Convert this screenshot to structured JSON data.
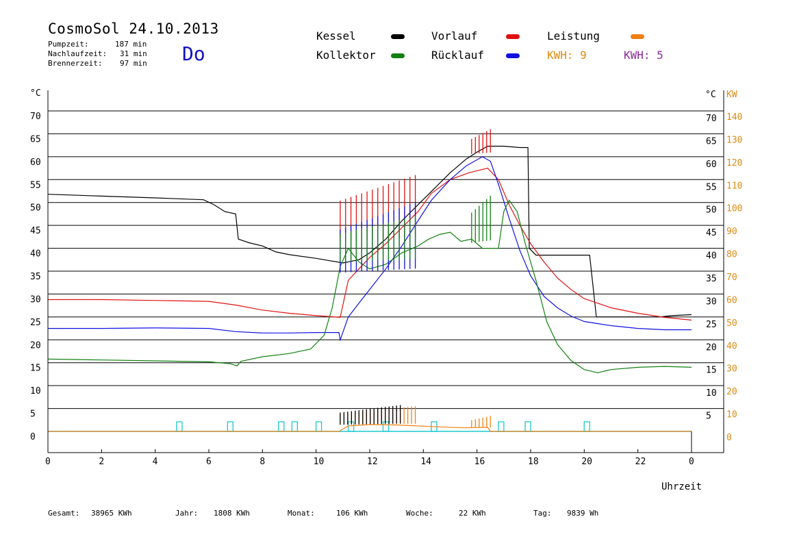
{
  "header": {
    "title": "CosmoSol 24.10.2013",
    "day": "Do",
    "stats": [
      {
        "label": "Pumpzeit:",
        "value": "187 min"
      },
      {
        "label": "Nachlaufzeit:",
        "value": "31 min"
      },
      {
        "label": "Brennerzeit:",
        "value": "97 min"
      }
    ]
  },
  "legend": {
    "kessel": {
      "label": "Kessel",
      "color": "#000000"
    },
    "vorlauf": {
      "label": "Vorlauf",
      "color": "#e01010"
    },
    "leistung": {
      "label": "Leistung",
      "color": "#f08010"
    },
    "kollektor": {
      "label": "Kollektor",
      "color": "#108010"
    },
    "ruecklauf": {
      "label": "Rücklauf",
      "color": "#1010e0"
    },
    "kwh1": {
      "label": "KWH: 9",
      "color": "#e08a10"
    },
    "kwh2": {
      "label": "KWH: 5",
      "color": "#8a2a9a"
    }
  },
  "footer": [
    {
      "label": "Gesamt:",
      "value": "38965 KWh"
    },
    {
      "label": "Jahr:",
      "value": "1808 KWh"
    },
    {
      "label": "Monat:",
      "value": "106 KWh"
    },
    {
      "label": "Woche:",
      "value": "22 KWh"
    },
    {
      "label": "Tag:",
      "value": "9839 Wh"
    }
  ],
  "chart_data": {
    "type": "line",
    "xlabel": "Uhrzeit",
    "ylabel_left": "°C",
    "ylabel_right_1": "°C",
    "ylabel_right_2": "KW",
    "x_ticks": [
      "0",
      "2",
      "4",
      "6",
      "8",
      "10",
      "12",
      "14",
      "16",
      "18",
      "20",
      "22",
      "0"
    ],
    "xlim": [
      0,
      24
    ],
    "ylim": [
      0,
      70
    ],
    "y_ticks": [
      0,
      5,
      10,
      15,
      20,
      25,
      30,
      35,
      40,
      45,
      50,
      55,
      60,
      65,
      70
    ],
    "y2_ticks": [
      0,
      10,
      20,
      30,
      40,
      50,
      60,
      70,
      80,
      90,
      100,
      110,
      120,
      130,
      140
    ],
    "grid": true,
    "series": [
      {
        "name": "Kessel",
        "color": "#000000",
        "points": [
          [
            0,
            51.8
          ],
          [
            2,
            51.4
          ],
          [
            4,
            51
          ],
          [
            5.8,
            50.6
          ],
          [
            6.2,
            49.5
          ],
          [
            6.6,
            48
          ],
          [
            7,
            47.5
          ],
          [
            7.1,
            42
          ],
          [
            7.5,
            41.2
          ],
          [
            8,
            40.5
          ],
          [
            8.5,
            39.2
          ],
          [
            9,
            38.6
          ],
          [
            10,
            37.8
          ],
          [
            11,
            36.8
          ],
          [
            11.6,
            37.5
          ],
          [
            12,
            39
          ],
          [
            12.6,
            42
          ],
          [
            13.2,
            46
          ],
          [
            13.8,
            49.5
          ],
          [
            14.4,
            53
          ],
          [
            15,
            56.5
          ],
          [
            15.6,
            59.5
          ],
          [
            16,
            61
          ],
          [
            16.4,
            62.3
          ],
          [
            17,
            62.3
          ],
          [
            17.6,
            62
          ],
          [
            17.9,
            62
          ],
          [
            17.95,
            40
          ],
          [
            18.2,
            38.5
          ],
          [
            20.2,
            38.5
          ],
          [
            20.45,
            25
          ],
          [
            22,
            25
          ],
          [
            22.8,
            25
          ],
          [
            23.3,
            25.3
          ],
          [
            24,
            25.5
          ]
        ]
      },
      {
        "name": "Vorlauf",
        "color": "#e01010",
        "points": [
          [
            0,
            28.8
          ],
          [
            2,
            28.8
          ],
          [
            4,
            28.6
          ],
          [
            6,
            28.4
          ],
          [
            7,
            27.6
          ],
          [
            8,
            26.5
          ],
          [
            9,
            25.8
          ],
          [
            10,
            25.3
          ],
          [
            10.9,
            24.9
          ],
          [
            11.2,
            33
          ],
          [
            11.6,
            35.5
          ],
          [
            12,
            38
          ],
          [
            12.6,
            41
          ],
          [
            13.2,
            44.5
          ],
          [
            13.8,
            48
          ],
          [
            14.3,
            52
          ],
          [
            15,
            55
          ],
          [
            15.7,
            56.5
          ],
          [
            16.4,
            57.5
          ],
          [
            16.8,
            55
          ],
          [
            17.2,
            49.5
          ],
          [
            17.6,
            45
          ],
          [
            18,
            41
          ],
          [
            18.5,
            37
          ],
          [
            19,
            33.5
          ],
          [
            19.5,
            31
          ],
          [
            20,
            29
          ],
          [
            21,
            27
          ],
          [
            22,
            25.8
          ],
          [
            23,
            24.9
          ],
          [
            24,
            24.3
          ]
        ]
      },
      {
        "name": "Rücklauf",
        "color": "#1010e0",
        "points": [
          [
            0,
            22.5
          ],
          [
            2,
            22.5
          ],
          [
            4,
            22.6
          ],
          [
            6,
            22.5
          ],
          [
            7,
            21.8
          ],
          [
            8,
            21.5
          ],
          [
            9,
            21.5
          ],
          [
            10,
            21.6
          ],
          [
            10.85,
            21.6
          ],
          [
            10.9,
            20
          ],
          [
            11.2,
            25
          ],
          [
            11.6,
            28
          ],
          [
            12,
            31
          ],
          [
            12.6,
            35.5
          ],
          [
            13.2,
            40.5
          ],
          [
            13.8,
            46
          ],
          [
            14.3,
            50.5
          ],
          [
            15,
            55
          ],
          [
            15.6,
            58
          ],
          [
            16.2,
            60
          ],
          [
            16.5,
            59
          ],
          [
            16.8,
            54
          ],
          [
            17.2,
            46.5
          ],
          [
            17.6,
            39.5
          ],
          [
            18,
            34
          ],
          [
            18.5,
            29.5
          ],
          [
            19,
            27
          ],
          [
            19.5,
            25.2
          ],
          [
            20,
            24
          ],
          [
            21,
            23.1
          ],
          [
            22,
            22.5
          ],
          [
            23,
            22.2
          ],
          [
            24,
            22.2
          ]
        ]
      },
      {
        "name": "Kollektor",
        "color": "#108010",
        "points": [
          [
            0,
            15.8
          ],
          [
            2,
            15.6
          ],
          [
            4,
            15.4
          ],
          [
            6,
            15.2
          ],
          [
            6.8,
            14.8
          ],
          [
            7.05,
            14.3
          ],
          [
            7.2,
            15.3
          ],
          [
            8,
            16.3
          ],
          [
            9,
            17
          ],
          [
            9.8,
            18
          ],
          [
            10.3,
            21
          ],
          [
            10.6,
            27
          ],
          [
            10.9,
            36
          ],
          [
            11.2,
            40
          ],
          [
            11.6,
            37
          ],
          [
            12,
            35.5
          ],
          [
            12.6,
            36.5
          ],
          [
            13.2,
            39
          ],
          [
            13.8,
            40.5
          ],
          [
            14.2,
            42
          ],
          [
            14.6,
            43
          ],
          [
            15,
            43.5
          ],
          [
            15.4,
            41.5
          ],
          [
            15.8,
            42
          ],
          [
            16.2,
            40
          ],
          [
            16.8,
            40
          ],
          [
            17,
            48
          ],
          [
            17.2,
            50.5
          ],
          [
            17.5,
            48
          ],
          [
            17.8,
            41
          ],
          [
            18.2,
            33
          ],
          [
            18.6,
            24
          ],
          [
            19,
            19
          ],
          [
            19.5,
            15.5
          ],
          [
            20,
            13.5
          ],
          [
            20.5,
            12.8
          ],
          [
            21,
            13.5
          ],
          [
            22,
            14
          ],
          [
            23,
            14.2
          ],
          [
            24,
            14
          ]
        ]
      },
      {
        "name": "Leistung",
        "color": "#f08010",
        "points": [
          [
            0,
            0
          ],
          [
            10.85,
            0
          ],
          [
            11.2,
            1.2
          ],
          [
            12,
            1.5
          ],
          [
            13,
            1.4
          ],
          [
            13.8,
            1.2
          ],
          [
            14.5,
            1
          ],
          [
            15.5,
            0.8
          ],
          [
            16.4,
            0.9
          ],
          [
            16.5,
            0
          ],
          [
            24,
            0
          ]
        ]
      }
    ],
    "spikes": [
      {
        "series": "Vorlauf",
        "range": [
          10.9,
          13.7
        ],
        "spacing": 0.2,
        "top": 56,
        "base": 40
      },
      {
        "series": "Rücklauf",
        "range": [
          10.9,
          13.7
        ],
        "spacing": 0.2,
        "top": 50,
        "base": 33
      },
      {
        "series": "Kollektor",
        "range": [
          10.9,
          13.7
        ],
        "spacing": 0.2,
        "top": 47,
        "base": 36
      },
      {
        "series": "Vorlauf",
        "range": [
          15.8,
          16.5
        ],
        "spacing": 0.14,
        "top": 66,
        "base": 60
      },
      {
        "series": "Kollektor",
        "range": [
          15.8,
          16.6
        ],
        "spacing": 0.14,
        "top": 52,
        "base": 40
      },
      {
        "series": "Leistung",
        "range": [
          10.9,
          13.7
        ],
        "spacing": 0.14,
        "top": 5.5,
        "base": 1
      },
      {
        "series": "Kessel",
        "range": [
          10.9,
          13.2
        ],
        "spacing": 0.14,
        "top": 5.8,
        "base": 1
      },
      {
        "series": "Leistung",
        "range": [
          15.8,
          16.6
        ],
        "spacing": 0.14,
        "top": 3.5,
        "base": 0.5
      }
    ],
    "pump_markers": [
      4.9,
      6.8,
      8.7,
      9.2,
      10.1,
      11.3,
      12.6,
      14.4,
      16.9,
      17.9,
      20.1
    ],
    "pump_color": "#18c8d0"
  }
}
